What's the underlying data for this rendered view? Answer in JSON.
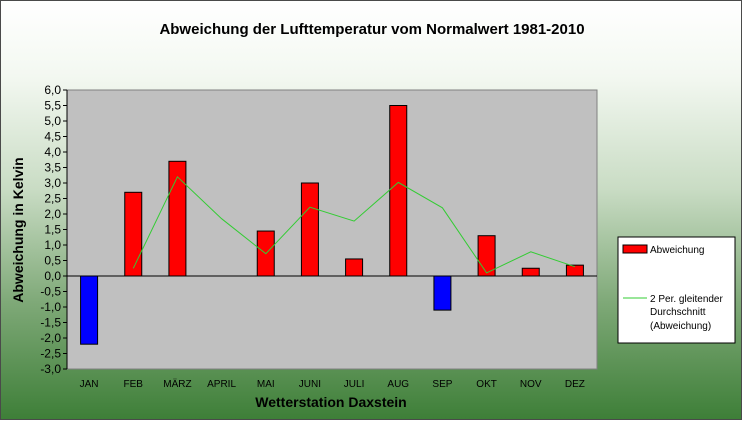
{
  "chart_data": {
    "type": "bar",
    "title": "Abweichung der Lufttemperatur vom Normalwert 1981-2010",
    "xlabel": "Wetterstation Daxstein",
    "ylabel": "Abweichung in Kelvin",
    "categories": [
      "JAN",
      "FEB",
      "MÄRZ",
      "APRIL",
      "MAI",
      "JUNI",
      "JULI",
      "AUG",
      "SEP",
      "OKT",
      "NOV",
      "DEZ"
    ],
    "ylim": [
      -3.0,
      6.0
    ],
    "yticks": [
      "6,0",
      "5,5",
      "5,0",
      "4,5",
      "4,0",
      "3,5",
      "3,0",
      "2,5",
      "2,0",
      "1,5",
      "1,0",
      "0,5",
      "0,0",
      "-0,5",
      "-1,0",
      "-1,5",
      "-2,0",
      "-2,5",
      "-3,0"
    ],
    "grid": false,
    "legend_position": "right",
    "series": [
      {
        "name": "Abweichung",
        "kind": "bar",
        "values": [
          -2.2,
          2.7,
          3.7,
          0.0,
          1.45,
          3.0,
          0.55,
          5.5,
          -1.1,
          1.3,
          0.25,
          0.35
        ],
        "positive_color": "#ff0000",
        "negative_color": "#0000ff"
      },
      {
        "name": "2 Per. gleitender Durchschnitt (Abweichung)",
        "legend_lines": [
          "2 Per. gleitender",
          "Durchschnitt",
          "(Abweichung)"
        ],
        "kind": "line",
        "values": [
          null,
          0.25,
          3.2,
          1.85,
          0.72,
          2.22,
          1.77,
          3.02,
          2.2,
          0.1,
          0.78,
          0.3
        ],
        "color": "#33cc33"
      }
    ],
    "plot_background": "#c0c0c0"
  }
}
